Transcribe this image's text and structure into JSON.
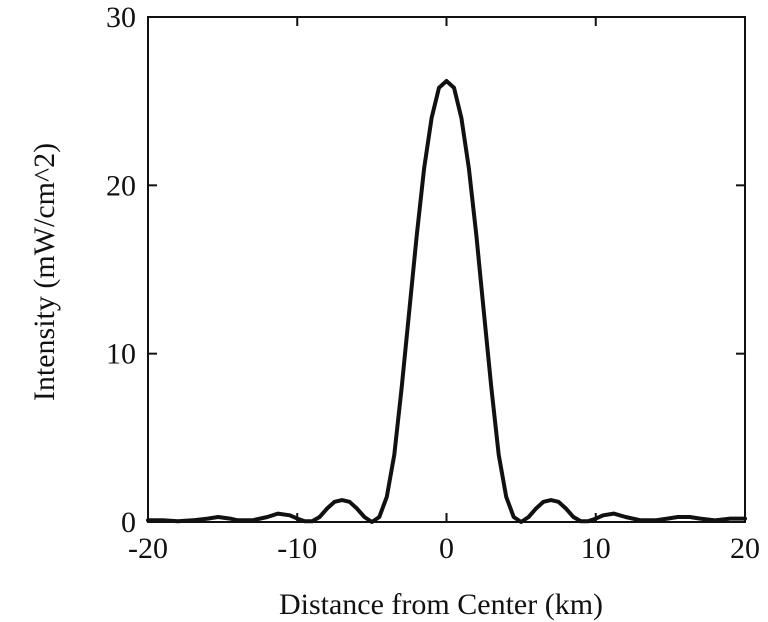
{
  "chart_data": {
    "type": "line",
    "title": "",
    "xlabel": "Distance from Center (km)",
    "ylabel": "Intensity (mW/cm^2)",
    "xlim": [
      -20,
      20
    ],
    "ylim": [
      0,
      30
    ],
    "xticks": [
      -20,
      -10,
      0,
      10,
      20
    ],
    "yticks": [
      0,
      10,
      20,
      30
    ],
    "xtick_labels": [
      "-20",
      "-10",
      "0",
      "10",
      "20"
    ],
    "ytick_labels": [
      "0",
      "10",
      "20",
      "30"
    ],
    "grid": false,
    "legend": "none",
    "line_color": "#111111",
    "series": [
      {
        "x": [
          -20,
          -19,
          -18,
          -17,
          -16,
          -15.3,
          -14.5,
          -14,
          -13,
          -12,
          -11.3,
          -10.5,
          -10,
          -9.5,
          -9,
          -8.5,
          -8,
          -7.5,
          -7,
          -6.5,
          -6,
          -5.5,
          -5,
          -4.5,
          -4,
          -3.5,
          -3,
          -2.5,
          -2,
          -1.5,
          -1,
          -0.5,
          0,
          0.5,
          1,
          1.5,
          2,
          2.5,
          3,
          3.5,
          4,
          4.5,
          5,
          5.5,
          6,
          6.5,
          7,
          7.5,
          8,
          8.5,
          9,
          9.5,
          10,
          10.5,
          11.2,
          12,
          13,
          14,
          14.8,
          15.5,
          16.3,
          17,
          18,
          19,
          20
        ],
        "y": [
          0.1,
          0.1,
          0.05,
          0.1,
          0.2,
          0.3,
          0.2,
          0.1,
          0.1,
          0.3,
          0.5,
          0.4,
          0.2,
          0.05,
          0.05,
          0.3,
          0.8,
          1.2,
          1.3,
          1.2,
          0.8,
          0.3,
          0.0,
          0.3,
          1.5,
          4.0,
          8.0,
          12.5,
          17.0,
          21.0,
          24.0,
          25.8,
          26.2,
          25.8,
          24.0,
          21.0,
          17.0,
          12.5,
          8.0,
          4.0,
          1.5,
          0.3,
          0.0,
          0.3,
          0.8,
          1.2,
          1.3,
          1.2,
          0.8,
          0.3,
          0.05,
          0.05,
          0.2,
          0.4,
          0.5,
          0.3,
          0.1,
          0.1,
          0.2,
          0.3,
          0.3,
          0.2,
          0.1,
          0.2,
          0.2
        ]
      }
    ]
  }
}
